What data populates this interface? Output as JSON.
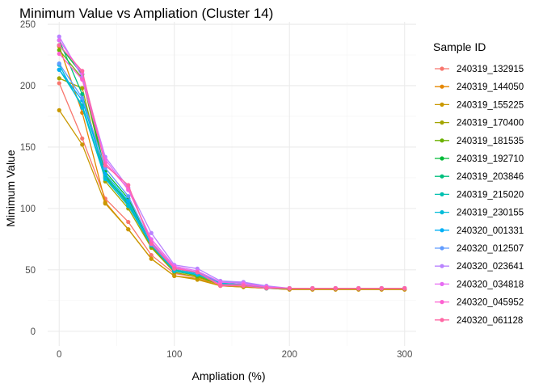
{
  "chart_data": {
    "type": "line",
    "title": "Minimum Value vs Ampliation (Cluster 14)",
    "xlabel": "Ampliation (%)",
    "ylabel": "Minimum Value",
    "xlim": [
      -10,
      310
    ],
    "ylim": [
      -12,
      252
    ],
    "x_ticks": [
      0,
      100,
      200,
      300
    ],
    "y_ticks": [
      0,
      50,
      100,
      150,
      200,
      250
    ],
    "x_tick_labels": [
      "0",
      "100",
      "200",
      "300"
    ],
    "y_tick_labels": [
      "0",
      "50",
      "100",
      "150",
      "200",
      "250"
    ],
    "grid": true,
    "legend_title": "Sample ID",
    "legend_position": "right",
    "x": [
      0,
      20,
      40,
      60,
      80,
      100,
      120,
      140,
      160,
      180,
      200,
      220,
      240,
      260,
      280,
      300
    ],
    "series": [
      {
        "name": "240319_132915",
        "color": "#F8766D",
        "values": [
          202,
          157,
          108,
          89,
          62,
          47,
          44,
          38,
          37,
          35,
          35,
          35,
          35,
          35,
          35,
          35
        ]
      },
      {
        "name": "240319_144050",
        "color": "#E58700",
        "values": [
          232,
          178,
          105,
          83,
          59,
          45,
          43,
          37,
          36,
          35,
          34,
          34,
          34,
          34,
          34,
          34
        ]
      },
      {
        "name": "240319_155225",
        "color": "#C99800",
        "values": [
          180,
          152,
          104,
          83,
          59,
          45,
          42,
          37,
          36,
          35,
          34,
          34,
          34,
          34,
          34,
          34
        ]
      },
      {
        "name": "240319_170400",
        "color": "#A3A500",
        "values": [
          206,
          198,
          122,
          100,
          68,
          48,
          44,
          38,
          37,
          35,
          35,
          35,
          35,
          35,
          35,
          35
        ]
      },
      {
        "name": "240319_181535",
        "color": "#6BB100",
        "values": [
          229,
          206,
          127,
          103,
          69,
          49,
          45,
          38,
          37,
          35,
          35,
          35,
          35,
          35,
          35,
          35
        ]
      },
      {
        "name": "240319_192710",
        "color": "#00BA38",
        "values": [
          233,
          209,
          130,
          108,
          70,
          50,
          46,
          39,
          38,
          35,
          35,
          35,
          35,
          35,
          35,
          35
        ]
      },
      {
        "name": "240319_203846",
        "color": "#00BF7D",
        "values": [
          237,
          193,
          126,
          105,
          70,
          49,
          46,
          39,
          38,
          35,
          35,
          35,
          35,
          35,
          35,
          35
        ]
      },
      {
        "name": "240319_215020",
        "color": "#00C0AF",
        "values": [
          213,
          184,
          125,
          104,
          70,
          50,
          46,
          39,
          38,
          35,
          35,
          35,
          35,
          35,
          35,
          35
        ]
      },
      {
        "name": "240319_230155",
        "color": "#00BCD8",
        "values": [
          217,
          182,
          124,
          102,
          70,
          49,
          46,
          39,
          38,
          35,
          35,
          35,
          35,
          35,
          35,
          35
        ]
      },
      {
        "name": "240320_001331",
        "color": "#00B0F6",
        "values": [
          213,
          188,
          128,
          106,
          70,
          51,
          47,
          40,
          39,
          36,
          35,
          35,
          35,
          35,
          35,
          35
        ]
      },
      {
        "name": "240320_012507",
        "color": "#619CFF",
        "values": [
          218,
          190,
          133,
          110,
          72,
          52,
          48,
          40,
          40,
          36,
          35,
          35,
          35,
          35,
          35,
          35
        ]
      },
      {
        "name": "240320_023641",
        "color": "#B983FF",
        "values": [
          240,
          207,
          142,
          117,
          80,
          54,
          51,
          41,
          40,
          37,
          35,
          35,
          35,
          35,
          35,
          35
        ]
      },
      {
        "name": "240320_034818",
        "color": "#E76BF3",
        "values": [
          237,
          210,
          140,
          115,
          75,
          53,
          49,
          40,
          39,
          36,
          35,
          35,
          35,
          35,
          35,
          35
        ]
      },
      {
        "name": "240320_045952",
        "color": "#FD61D1",
        "values": [
          226,
          205,
          137,
          116,
          73,
          52,
          48,
          38,
          38,
          36,
          35,
          35,
          35,
          35,
          35,
          35
        ]
      },
      {
        "name": "240320_061128",
        "color": "#FF67A4",
        "values": [
          233,
          212,
          135,
          119,
          71,
          51,
          48,
          37,
          37,
          35,
          35,
          35,
          35,
          35,
          35,
          35
        ]
      }
    ]
  }
}
